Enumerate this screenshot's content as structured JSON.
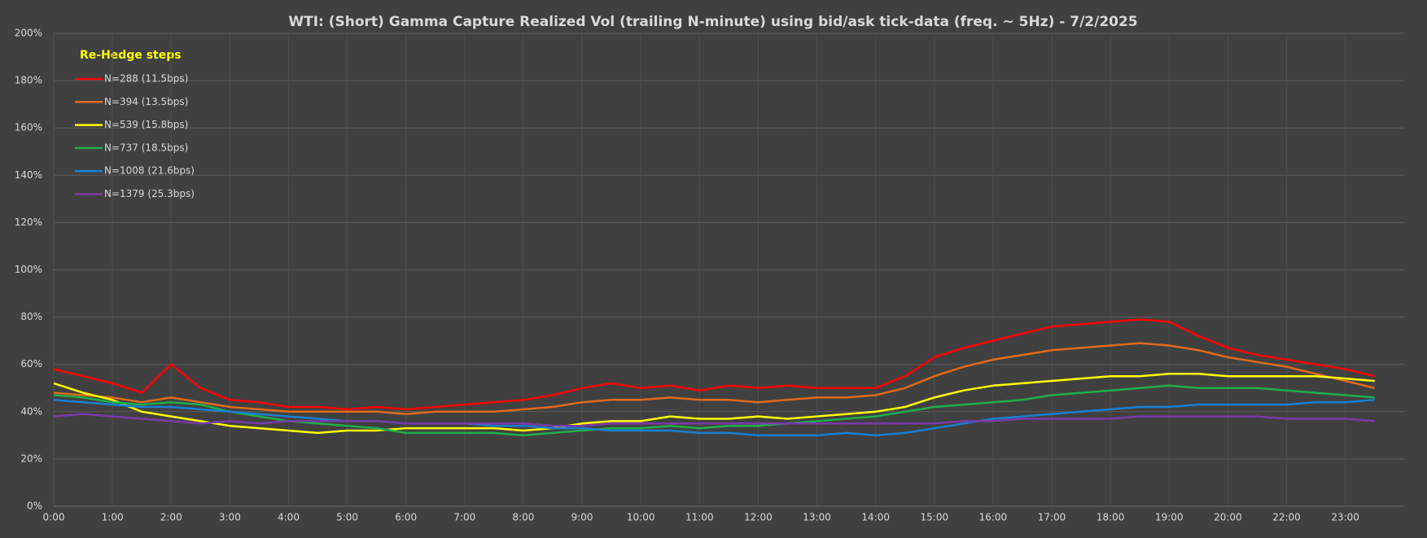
{
  "chart_data": {
    "type": "line",
    "title": "WTI: (Short) Gamma Capture Realized Vol (trailing N-minute) using bid/ask tick-data (freq. ~ 5Hz) - 7/2/2025",
    "legend_title": "Re-Hedge steps",
    "legend": "upper left",
    "grid": true,
    "categories": [
      "0:00",
      null,
      "1:00",
      null,
      "2:00",
      null,
      "3:00",
      null,
      "4:00",
      null,
      "5:00",
      null,
      "6:00",
      null,
      "7:00",
      null,
      "8:00",
      null,
      "9:00",
      null,
      "10:00",
      null,
      "11:00",
      null,
      "12:00",
      null,
      "13:00",
      null,
      "14:00",
      null,
      "15:00",
      null,
      "16:00",
      null,
      "17:00",
      null,
      "18:00",
      null,
      "19:00",
      null,
      "20:00",
      null,
      "22:00",
      null,
      "23:00",
      null
    ],
    "ylim": [
      0,
      200
    ],
    "yticks": [
      {
        "value": 0,
        "label": "0%"
      },
      {
        "value": 20,
        "label": "20%"
      },
      {
        "value": 40,
        "label": "40%"
      },
      {
        "value": 60,
        "label": "60%"
      },
      {
        "value": 80,
        "label": "80%"
      },
      {
        "value": 100,
        "label": "100%"
      },
      {
        "value": 120,
        "label": "120%"
      },
      {
        "value": 140,
        "label": "140%"
      },
      {
        "value": 160,
        "label": "160%"
      },
      {
        "value": 180,
        "label": "180%"
      },
      {
        "value": 200,
        "label": "200%"
      }
    ],
    "series": [
      {
        "name": "N=288 (11.5bps)",
        "color": "#ff0000",
        "values": [
          58,
          55,
          52,
          48,
          60,
          50,
          45,
          44,
          42,
          42,
          41,
          42,
          41,
          42,
          43,
          44,
          45,
          47,
          50,
          52,
          50,
          51,
          49,
          51,
          50,
          51,
          50,
          50,
          50,
          55,
          63,
          67,
          70,
          73,
          76,
          77,
          78,
          79,
          78,
          72,
          67,
          64,
          62,
          60,
          58,
          55
        ]
      },
      {
        "name": "N=394 (13.5bps)",
        "color": "#e06a1b",
        "values": [
          48,
          47,
          46,
          44,
          46,
          44,
          42,
          41,
          40,
          40,
          40,
          40,
          39,
          40,
          40,
          40,
          41,
          42,
          44,
          45,
          45,
          46,
          45,
          45,
          44,
          45,
          46,
          46,
          47,
          50,
          55,
          59,
          62,
          64,
          66,
          67,
          68,
          69,
          68,
          66,
          63,
          61,
          59,
          56,
          53,
          50
        ]
      },
      {
        "name": "N=539 (15.8bps)",
        "color": "#ffff00",
        "values": [
          52,
          48,
          45,
          40,
          38,
          36,
          34,
          33,
          32,
          31,
          32,
          32,
          33,
          33,
          33,
          33,
          32,
          33,
          35,
          36,
          36,
          38,
          37,
          37,
          38,
          37,
          38,
          39,
          40,
          42,
          46,
          49,
          51,
          52,
          53,
          54,
          55,
          55,
          56,
          56,
          55,
          55,
          55,
          55,
          54,
          53
        ]
      },
      {
        "name": "N=737 (18.5bps)",
        "color": "#1fae4b",
        "values": [
          47,
          46,
          44,
          43,
          44,
          43,
          40,
          38,
          36,
          35,
          34,
          33,
          31,
          31,
          31,
          31,
          30,
          31,
          32,
          33,
          33,
          34,
          33,
          34,
          34,
          35,
          36,
          37,
          38,
          40,
          42,
          43,
          44,
          45,
          47,
          48,
          49,
          50,
          51,
          50,
          50,
          50,
          49,
          48,
          47,
          46
        ]
      },
      {
        "name": "N=1008 (21.6bps)",
        "color": "#1a7fd0",
        "values": [
          45,
          44,
          43,
          42,
          42,
          41,
          40,
          39,
          38,
          37,
          36,
          36,
          35,
          35,
          35,
          34,
          34,
          33,
          33,
          32,
          32,
          32,
          31,
          31,
          30,
          30,
          30,
          31,
          30,
          31,
          33,
          35,
          37,
          38,
          39,
          40,
          41,
          42,
          42,
          43,
          43,
          43,
          43,
          44,
          44,
          45
        ]
      },
      {
        "name": "N=1379 (25.3bps)",
        "color": "#7a3aa8",
        "values": [
          38,
          39,
          38,
          37,
          36,
          35,
          36,
          35,
          36,
          36,
          36,
          36,
          35,
          35,
          35,
          35,
          35,
          34,
          34,
          35,
          35,
          35,
          35,
          35,
          35,
          35,
          35,
          35,
          35,
          35,
          35,
          36,
          36,
          37,
          37,
          37,
          37,
          38,
          38,
          38,
          38,
          38,
          37,
          37,
          37,
          36
        ]
      }
    ]
  }
}
